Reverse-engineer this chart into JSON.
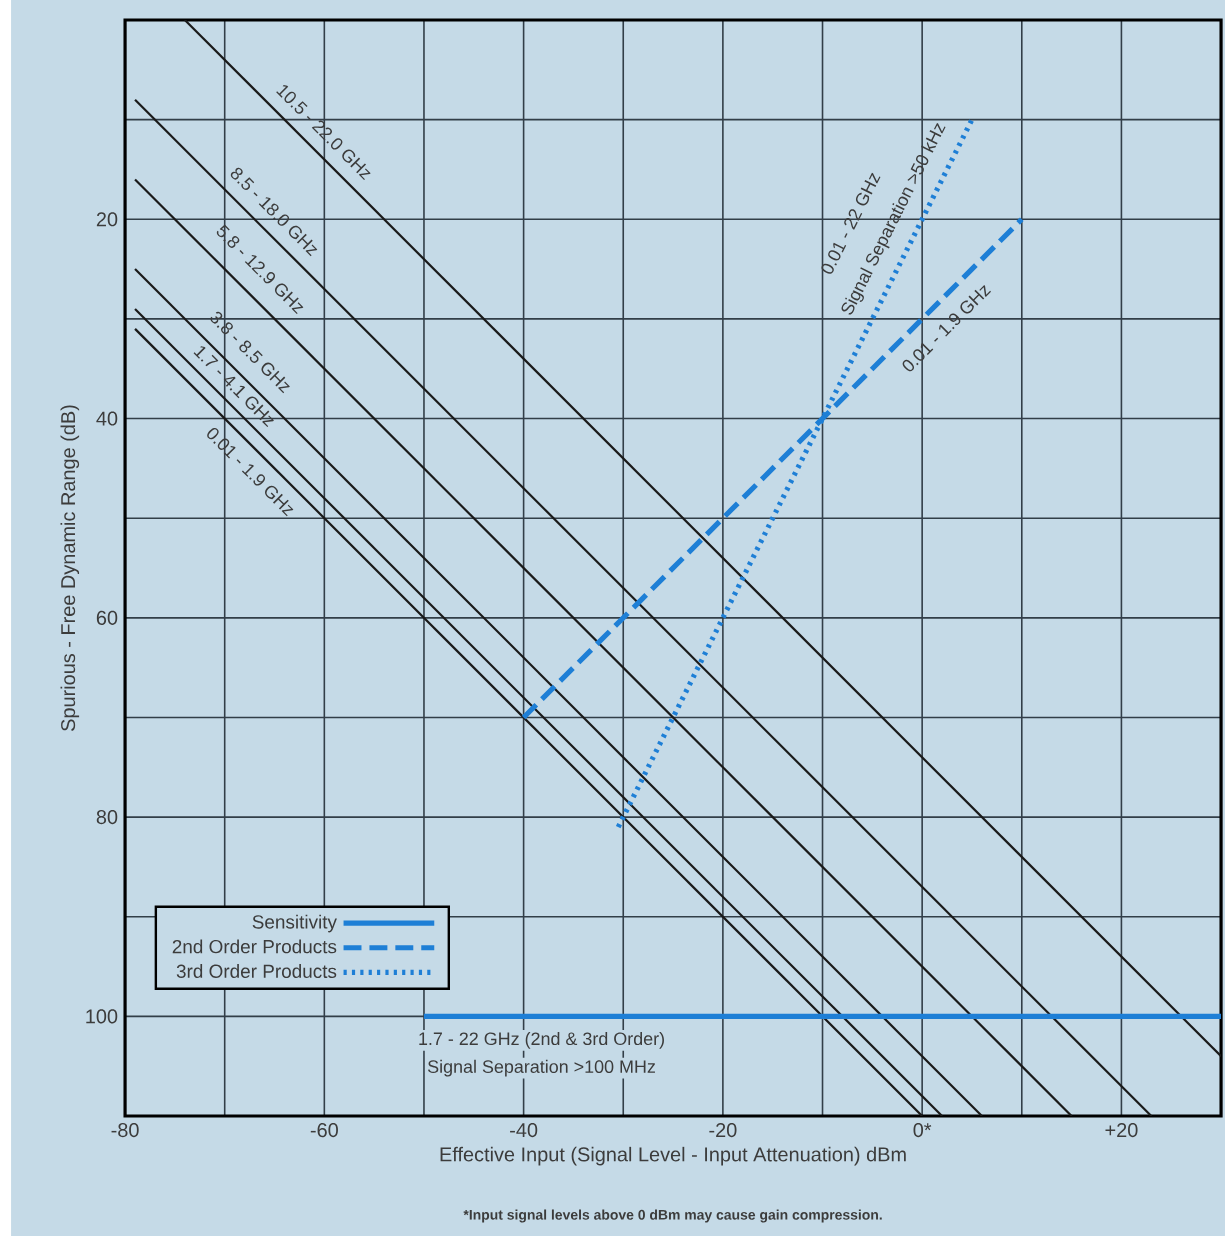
{
  "chart_data": {
    "type": "line",
    "xlabel": "Effective Input (Signal Level - Input Attenuation) dBm",
    "ylabel": "Spurious - Free Dynamic Range (dB)",
    "xlim": [
      -80,
      30
    ],
    "ylim": [
      110,
      0
    ],
    "xticks": [
      -80,
      {
        "value": -70,
        "label": null
      },
      -60,
      {
        "value": -50,
        "label": null
      },
      -40,
      {
        "value": -30,
        "label": null
      },
      -20,
      {
        "value": -10,
        "label": null
      },
      {
        "value": 0,
        "label": "0*"
      },
      {
        "value": 10,
        "label": null
      },
      {
        "value": 20,
        "label": "+20"
      }
    ],
    "yticks": [
      {
        "value": 10,
        "label": null
      },
      20,
      {
        "value": 30,
        "label": null
      },
      40,
      {
        "value": 50,
        "label": null
      },
      60,
      {
        "value": 70,
        "label": null
      },
      80,
      {
        "value": 90,
        "label": null
      },
      100
    ],
    "grid": true,
    "legend": "bottom left",
    "series": [
      {
        "color": "#1a1a1a",
        "line_style": "solid",
        "x": [
          -74,
          30
        ],
        "values": [
          0,
          104
        ]
      },
      {
        "color": "#1a1a1a",
        "line_style": "solid",
        "x": [
          -79,
          23
        ],
        "values": [
          8,
          110
        ]
      },
      {
        "color": "#1a1a1a",
        "line_style": "solid",
        "x": [
          -79,
          15
        ],
        "values": [
          16,
          110
        ]
      },
      {
        "color": "#1a1a1a",
        "line_style": "solid",
        "x": [
          -79,
          6
        ],
        "values": [
          25,
          110
        ]
      },
      {
        "color": "#1a1a1a",
        "line_style": "solid",
        "x": [
          -79,
          2
        ],
        "values": [
          29,
          110
        ]
      },
      {
        "color": "#1a1a1a",
        "line_style": "solid",
        "x": [
          -79,
          0
        ],
        "values": [
          31,
          110
        ]
      },
      {
        "name": "Sensitivity",
        "color": "#1e7fd6",
        "line_style": "solid",
        "x": [
          -50,
          30
        ],
        "values": [
          100,
          100
        ]
      },
      {
        "name": "2nd Order Products",
        "color": "#1e7fd6",
        "line_style": "dashed",
        "x": [
          -40,
          10
        ],
        "values": [
          70,
          20
        ]
      },
      {
        "name": "3rd Order Products",
        "color": "#1e7fd6",
        "line_style": "dotted",
        "x": [
          -30.5,
          5
        ],
        "values": [
          81,
          10
        ]
      }
    ],
    "annotations": [
      "10.5 - 22.0 GHz",
      "8.5 - 18.0 GHz",
      "5.8 - 12.9 GHz",
      "3.8 - 8.5 GHz",
      "1.7 - 4.1 GHz",
      "0.01 - 1.9 GHz",
      "0.01 - 22 GHz",
      "Signal Separation >50 kHz",
      "0.01 - 1.9 GHz",
      "1.7 - 22 GHz (2nd & 3rd Order)",
      "Signal Separation  >100 MHz",
      "*Input signal levels above 0 dBm may cause gain compression."
    ]
  }
}
